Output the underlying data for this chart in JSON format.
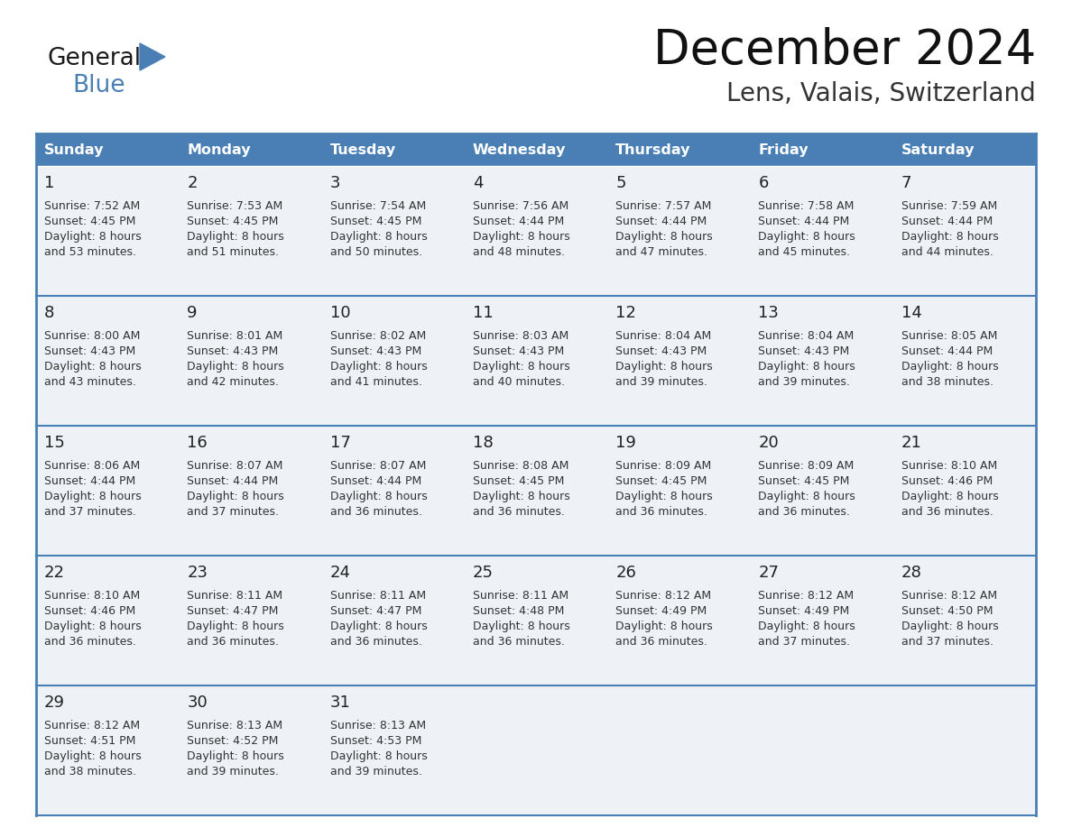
{
  "title": "December 2024",
  "subtitle": "Lens, Valais, Switzerland",
  "header_color": "#4a7fb5",
  "header_text_color": "#ffffff",
  "cell_bg_color": "#eef2f7",
  "border_color": "#4a7fb5",
  "days_of_week": [
    "Sunday",
    "Monday",
    "Tuesday",
    "Wednesday",
    "Thursday",
    "Friday",
    "Saturday"
  ],
  "weeks": [
    [
      {
        "day": 1,
        "sunrise": "7:52 AM",
        "sunset": "4:45 PM",
        "daylight_h": "8 hours",
        "daylight_m": "and 53 minutes."
      },
      {
        "day": 2,
        "sunrise": "7:53 AM",
        "sunset": "4:45 PM",
        "daylight_h": "8 hours",
        "daylight_m": "and 51 minutes."
      },
      {
        "day": 3,
        "sunrise": "7:54 AM",
        "sunset": "4:45 PM",
        "daylight_h": "8 hours",
        "daylight_m": "and 50 minutes."
      },
      {
        "day": 4,
        "sunrise": "7:56 AM",
        "sunset": "4:44 PM",
        "daylight_h": "8 hours",
        "daylight_m": "and 48 minutes."
      },
      {
        "day": 5,
        "sunrise": "7:57 AM",
        "sunset": "4:44 PM",
        "daylight_h": "8 hours",
        "daylight_m": "and 47 minutes."
      },
      {
        "day": 6,
        "sunrise": "7:58 AM",
        "sunset": "4:44 PM",
        "daylight_h": "8 hours",
        "daylight_m": "and 45 minutes."
      },
      {
        "day": 7,
        "sunrise": "7:59 AM",
        "sunset": "4:44 PM",
        "daylight_h": "8 hours",
        "daylight_m": "and 44 minutes."
      }
    ],
    [
      {
        "day": 8,
        "sunrise": "8:00 AM",
        "sunset": "4:43 PM",
        "daylight_h": "8 hours",
        "daylight_m": "and 43 minutes."
      },
      {
        "day": 9,
        "sunrise": "8:01 AM",
        "sunset": "4:43 PM",
        "daylight_h": "8 hours",
        "daylight_m": "and 42 minutes."
      },
      {
        "day": 10,
        "sunrise": "8:02 AM",
        "sunset": "4:43 PM",
        "daylight_h": "8 hours",
        "daylight_m": "and 41 minutes."
      },
      {
        "day": 11,
        "sunrise": "8:03 AM",
        "sunset": "4:43 PM",
        "daylight_h": "8 hours",
        "daylight_m": "and 40 minutes."
      },
      {
        "day": 12,
        "sunrise": "8:04 AM",
        "sunset": "4:43 PM",
        "daylight_h": "8 hours",
        "daylight_m": "and 39 minutes."
      },
      {
        "day": 13,
        "sunrise": "8:04 AM",
        "sunset": "4:43 PM",
        "daylight_h": "8 hours",
        "daylight_m": "and 39 minutes."
      },
      {
        "day": 14,
        "sunrise": "8:05 AM",
        "sunset": "4:44 PM",
        "daylight_h": "8 hours",
        "daylight_m": "and 38 minutes."
      }
    ],
    [
      {
        "day": 15,
        "sunrise": "8:06 AM",
        "sunset": "4:44 PM",
        "daylight_h": "8 hours",
        "daylight_m": "and 37 minutes."
      },
      {
        "day": 16,
        "sunrise": "8:07 AM",
        "sunset": "4:44 PM",
        "daylight_h": "8 hours",
        "daylight_m": "and 37 minutes."
      },
      {
        "day": 17,
        "sunrise": "8:07 AM",
        "sunset": "4:44 PM",
        "daylight_h": "8 hours",
        "daylight_m": "and 36 minutes."
      },
      {
        "day": 18,
        "sunrise": "8:08 AM",
        "sunset": "4:45 PM",
        "daylight_h": "8 hours",
        "daylight_m": "and 36 minutes."
      },
      {
        "day": 19,
        "sunrise": "8:09 AM",
        "sunset": "4:45 PM",
        "daylight_h": "8 hours",
        "daylight_m": "and 36 minutes."
      },
      {
        "day": 20,
        "sunrise": "8:09 AM",
        "sunset": "4:45 PM",
        "daylight_h": "8 hours",
        "daylight_m": "and 36 minutes."
      },
      {
        "day": 21,
        "sunrise": "8:10 AM",
        "sunset": "4:46 PM",
        "daylight_h": "8 hours",
        "daylight_m": "and 36 minutes."
      }
    ],
    [
      {
        "day": 22,
        "sunrise": "8:10 AM",
        "sunset": "4:46 PM",
        "daylight_h": "8 hours",
        "daylight_m": "and 36 minutes."
      },
      {
        "day": 23,
        "sunrise": "8:11 AM",
        "sunset": "4:47 PM",
        "daylight_h": "8 hours",
        "daylight_m": "and 36 minutes."
      },
      {
        "day": 24,
        "sunrise": "8:11 AM",
        "sunset": "4:47 PM",
        "daylight_h": "8 hours",
        "daylight_m": "and 36 minutes."
      },
      {
        "day": 25,
        "sunrise": "8:11 AM",
        "sunset": "4:48 PM",
        "daylight_h": "8 hours",
        "daylight_m": "and 36 minutes."
      },
      {
        "day": 26,
        "sunrise": "8:12 AM",
        "sunset": "4:49 PM",
        "daylight_h": "8 hours",
        "daylight_m": "and 36 minutes."
      },
      {
        "day": 27,
        "sunrise": "8:12 AM",
        "sunset": "4:49 PM",
        "daylight_h": "8 hours",
        "daylight_m": "and 37 minutes."
      },
      {
        "day": 28,
        "sunrise": "8:12 AM",
        "sunset": "4:50 PM",
        "daylight_h": "8 hours",
        "daylight_m": "and 37 minutes."
      }
    ],
    [
      {
        "day": 29,
        "sunrise": "8:12 AM",
        "sunset": "4:51 PM",
        "daylight_h": "8 hours",
        "daylight_m": "and 38 minutes."
      },
      {
        "day": 30,
        "sunrise": "8:13 AM",
        "sunset": "4:52 PM",
        "daylight_h": "8 hours",
        "daylight_m": "and 39 minutes."
      },
      {
        "day": 31,
        "sunrise": "8:13 AM",
        "sunset": "4:53 PM",
        "daylight_h": "8 hours",
        "daylight_m": "and 39 minutes."
      },
      null,
      null,
      null,
      null
    ]
  ]
}
